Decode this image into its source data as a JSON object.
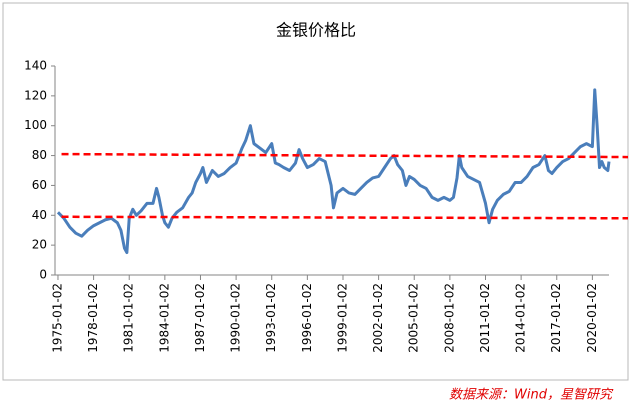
{
  "chart_data": {
    "type": "line",
    "title": "金银价格比",
    "source": "数据来源：Wind，星智研究",
    "series": [
      {
        "name": "金银价格比",
        "color": "#4a7ebb",
        "x": [
          1975.0,
          1975.5,
          1976.0,
          1976.5,
          1977.0,
          1977.5,
          1978.0,
          1978.5,
          1979.0,
          1979.5,
          1980.0,
          1980.3,
          1980.6,
          1980.8,
          1981.0,
          1981.3,
          1981.6,
          1982.0,
          1982.5,
          1983.0,
          1983.3,
          1983.5,
          1983.8,
          1984.0,
          1984.3,
          1984.6,
          1985.0,
          1985.5,
          1986.0,
          1986.3,
          1986.6,
          1987.0,
          1987.2,
          1987.5,
          1988.0,
          1988.5,
          1989.0,
          1989.5,
          1990.0,
          1990.5,
          1990.8,
          1991.0,
          1991.2,
          1991.5,
          1992.0,
          1992.5,
          1993.0,
          1993.3,
          1993.6,
          1994.0,
          1994.5,
          1995.0,
          1995.3,
          1995.6,
          1996.0,
          1996.5,
          1997.0,
          1997.5,
          1998.0,
          1998.2,
          1998.5,
          1999.0,
          1999.5,
          2000.0,
          2000.5,
          2001.0,
          2001.5,
          2002.0,
          2002.5,
          2003.0,
          2003.3,
          2003.6,
          2004.0,
          2004.3,
          2004.6,
          2005.0,
          2005.5,
          2006.0,
          2006.5,
          2007.0,
          2007.5,
          2008.0,
          2008.3,
          2008.6,
          2008.8,
          2009.0,
          2009.5,
          2010.0,
          2010.5,
          2011.0,
          2011.3,
          2011.6,
          2012.0,
          2012.5,
          2013.0,
          2013.5,
          2014.0,
          2014.5,
          2015.0,
          2015.5,
          2016.0,
          2016.3,
          2016.6,
          2017.0,
          2017.5,
          2018.0,
          2018.5,
          2019.0,
          2019.5,
          2020.0,
          2020.2,
          2020.4,
          2020.6,
          2020.8,
          2021.0,
          2021.3,
          2021.4
        ],
        "values": [
          42,
          38,
          32,
          28,
          26,
          30,
          33,
          35,
          37,
          38,
          35,
          30,
          18,
          15,
          38,
          44,
          40,
          43,
          48,
          48,
          58,
          52,
          40,
          35,
          32,
          38,
          42,
          45,
          52,
          55,
          62,
          68,
          72,
          62,
          70,
          66,
          68,
          72,
          75,
          85,
          90,
          95,
          100,
          88,
          85,
          82,
          88,
          75,
          74,
          72,
          70,
          75,
          84,
          78,
          72,
          74,
          78,
          76,
          60,
          45,
          55,
          58,
          55,
          54,
          58,
          62,
          65,
          66,
          72,
          78,
          80,
          74,
          70,
          60,
          66,
          64,
          60,
          58,
          52,
          50,
          52,
          50,
          52,
          65,
          80,
          72,
          66,
          64,
          62,
          48,
          35,
          44,
          50,
          54,
          56,
          62,
          62,
          66,
          72,
          74,
          80,
          70,
          68,
          72,
          76,
          78,
          82,
          86,
          88,
          86,
          124,
          100,
          72,
          76,
          72,
          70,
          76
        ]
      }
    ],
    "reference_lines": [
      {
        "color": "#ff0000",
        "x": [
          1975.3,
          2023.0
        ],
        "values": [
          81,
          79
        ]
      },
      {
        "color": "#ff0000",
        "x": [
          1975.3,
          2023.0
        ],
        "values": [
          39,
          38
        ]
      }
    ],
    "xlim": [
      1974.75,
      2021.4
    ],
    "xticks": [
      {
        "value": 1975,
        "label": "1975-01-02"
      },
      {
        "value": 1978,
        "label": "1978-01-02"
      },
      {
        "value": 1981,
        "label": "1981-01-02"
      },
      {
        "value": 1984,
        "label": "1984-01-02"
      },
      {
        "value": 1987,
        "label": "1987-01-02"
      },
      {
        "value": 1990,
        "label": "1990-01-02"
      },
      {
        "value": 1993,
        "label": "1993-01-02"
      },
      {
        "value": 1996,
        "label": "1996-01-02"
      },
      {
        "value": 1999,
        "label": "1999-01-02"
      },
      {
        "value": 2002,
        "label": "2002-01-02"
      },
      {
        "value": 2005,
        "label": "2005-01-02"
      },
      {
        "value": 2008,
        "label": "2008-01-02"
      },
      {
        "value": 2011,
        "label": "2011-01-02"
      },
      {
        "value": 2014,
        "label": "2014-01-02"
      },
      {
        "value": 2017,
        "label": "2017-01-02"
      },
      {
        "value": 2020,
        "label": "2020-01-02"
      }
    ],
    "ylim": [
      0,
      140
    ],
    "yticks": [
      0,
      20,
      40,
      60,
      80,
      100,
      120,
      140
    ],
    "grid": false
  }
}
